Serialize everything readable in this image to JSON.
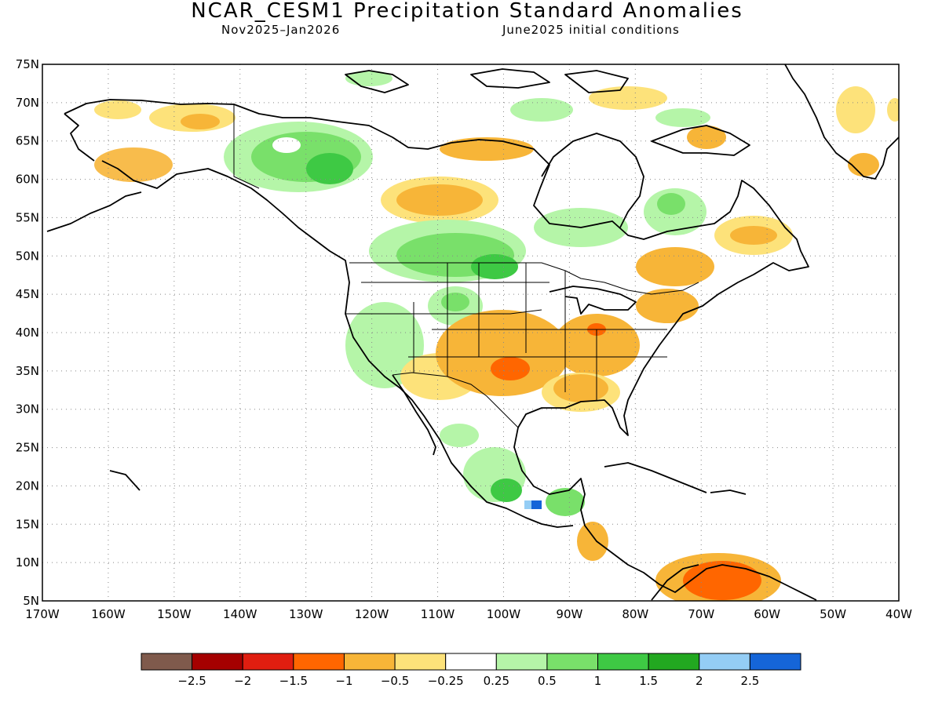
{
  "title": "NCAR_CESM1 Precipitation Standard Anomalies",
  "subtitle_left": "Nov2025–Jan2026",
  "subtitle_right": "June2025 initial conditions",
  "map": {
    "lon_range": [
      -170,
      -40
    ],
    "lat_range": [
      5,
      75
    ],
    "lat_ticks": [
      "75N",
      "70N",
      "65N",
      "60N",
      "55N",
      "50N",
      "45N",
      "40N",
      "35N",
      "30N",
      "25N",
      "20N",
      "15N",
      "10N",
      "5N"
    ],
    "lon_ticks": [
      "170W",
      "160W",
      "150W",
      "140W",
      "130W",
      "120W",
      "110W",
      "100W",
      "90W",
      "80W",
      "70W",
      "60W",
      "50W",
      "40W"
    ],
    "gridlines": "dotted"
  },
  "colorbar": {
    "colors": [
      "#7f5a4c",
      "#a50000",
      "#e01e10",
      "#ff6600",
      "#f7b538",
      "#fde27a",
      "#ffffff",
      "#b5f5a8",
      "#79e06a",
      "#3ec944",
      "#22a820",
      "#94cdf5",
      "#1565d8"
    ],
    "labels": [
      "−2.5",
      "−2",
      "−1.5",
      "−1",
      "−0.5",
      "−0.25",
      "0.25",
      "0.5",
      "1",
      "1.5",
      "2",
      "2.5"
    ]
  }
}
